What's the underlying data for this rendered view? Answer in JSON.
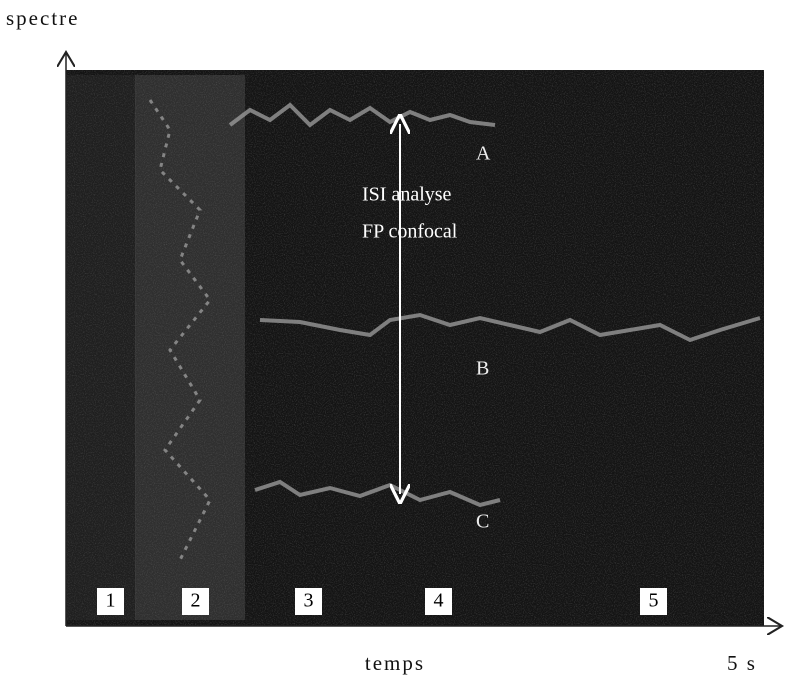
{
  "axes": {
    "y_label": "spectre",
    "x_label": "temps",
    "x_end": "5 s"
  },
  "annotation": [
    "ISI analyse",
    "FP confocal"
  ],
  "curves": [
    "A",
    "B",
    "C"
  ],
  "phases": [
    "1",
    "2",
    "3",
    "4",
    "5"
  ]
}
